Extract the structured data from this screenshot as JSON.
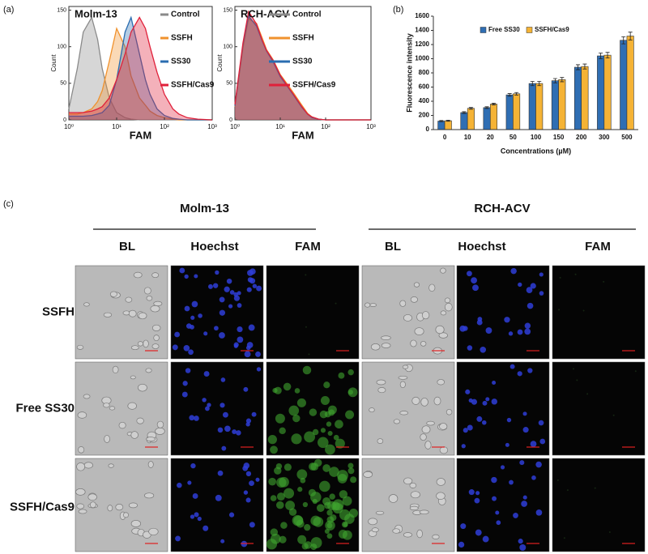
{
  "panel_labels": [
    "(a)",
    "(b)",
    "(c)"
  ],
  "chart_data": [
    {
      "type": "area",
      "title": "Molm-13",
      "y_label": "Count",
      "x_label": "FAM",
      "log_x": true,
      "xlim": [
        1,
        1000
      ],
      "ylim": [
        0,
        155
      ],
      "xticks": [
        {
          "value": 1,
          "label": "10⁰"
        },
        {
          "value": 10,
          "label": "10¹"
        },
        {
          "value": 100,
          "label": "10²"
        },
        {
          "value": 1000,
          "label": "10³"
        }
      ],
      "yticks": [
        0,
        50,
        100,
        150
      ],
      "legend": "upper right",
      "x": [
        1,
        1.5,
        2,
        3,
        4,
        5,
        7,
        10,
        15,
        20,
        30,
        40,
        50,
        70,
        100,
        150,
        200,
        300,
        500,
        1000
      ],
      "series": [
        {
          "name": "Control",
          "color": "#8a8a8a",
          "values": [
            15,
            70,
            120,
            140,
            110,
            70,
            30,
            10,
            3,
            1,
            0,
            0,
            0,
            0,
            0,
            0,
            0,
            0,
            0,
            0
          ]
        },
        {
          "name": "SSFH",
          "color": "#f0922e",
          "values": [
            8,
            8,
            10,
            15,
            25,
            40,
            80,
            125,
            100,
            60,
            30,
            20,
            12,
            6,
            3,
            1,
            0,
            0,
            0,
            0
          ]
        },
        {
          "name": "SS30",
          "color": "#2a6db0",
          "values": [
            5,
            5,
            5,
            6,
            8,
            10,
            20,
            55,
            120,
            140,
            90,
            55,
            35,
            15,
            6,
            2,
            1,
            0,
            0,
            0
          ]
        },
        {
          "name": "SSFH/Cas9",
          "color": "#e0203a",
          "values": [
            10,
            10,
            10,
            12,
            15,
            18,
            30,
            55,
            90,
            120,
            140,
            125,
            100,
            65,
            35,
            15,
            8,
            3,
            1,
            0
          ]
        }
      ]
    },
    {
      "type": "area",
      "title": "RCH-ACV",
      "y_label": "Count",
      "x_label": "FAM",
      "log_x": true,
      "xlim": [
        1,
        1000
      ],
      "ylim": [
        0,
        155
      ],
      "xticks": [
        {
          "value": 1,
          "label": "10⁰"
        },
        {
          "value": 10,
          "label": "10¹"
        },
        {
          "value": 100,
          "label": "10²"
        },
        {
          "value": 1000,
          "label": "10³"
        }
      ],
      "yticks": [
        0,
        50,
        100,
        150
      ],
      "legend": "upper right",
      "x": [
        1,
        1.5,
        2,
        3,
        4,
        5,
        7,
        10,
        15,
        20,
        30,
        40,
        50,
        70,
        100,
        150,
        200,
        300,
        500,
        1000
      ],
      "series": [
        {
          "name": "Control",
          "color": "#8a8a8a",
          "values": [
            20,
            100,
            140,
            130,
            110,
            95,
            80,
            60,
            45,
            35,
            18,
            8,
            4,
            1,
            0,
            0,
            0,
            0,
            0,
            0
          ]
        },
        {
          "name": "SSFH",
          "color": "#f0922e",
          "values": [
            18,
            98,
            138,
            132,
            112,
            96,
            82,
            62,
            47,
            36,
            20,
            9,
            4,
            1,
            0,
            0,
            0,
            0,
            0,
            0
          ]
        },
        {
          "name": "SS30",
          "color": "#2a6db0",
          "values": [
            19,
            102,
            142,
            128,
            108,
            94,
            79,
            59,
            44,
            33,
            17,
            8,
            3,
            1,
            0,
            0,
            0,
            0,
            0,
            0
          ]
        },
        {
          "name": "SSFH/Cas9",
          "color": "#e0203a",
          "values": [
            21,
            105,
            148,
            131,
            109,
            95,
            81,
            61,
            45,
            34,
            18,
            8,
            4,
            1,
            0,
            0,
            0,
            0,
            0,
            0
          ]
        }
      ]
    },
    {
      "type": "bar",
      "y_label": "Fluorescence intensity",
      "x_label": "Concentrations (µM)",
      "categories": [
        "0",
        "10",
        "20",
        "50",
        "100",
        "150",
        "200",
        "300",
        "500"
      ],
      "ylim": [
        0,
        1600
      ],
      "yticks": [
        0,
        200,
        400,
        600,
        800,
        1000,
        1200,
        1400,
        1600
      ],
      "legend": "upper center",
      "series": [
        {
          "name": "Free SS30",
          "color": "#2f6eb3",
          "values": [
            120,
            240,
            310,
            490,
            650,
            690,
            880,
            1040,
            1260
          ],
          "errors": [
            8,
            12,
            12,
            18,
            30,
            30,
            35,
            40,
            50
          ]
        },
        {
          "name": "SSFH/Cas9",
          "color": "#f5b335",
          "values": [
            125,
            300,
            360,
            505,
            650,
            705,
            890,
            1050,
            1320
          ],
          "errors": [
            8,
            12,
            12,
            18,
            30,
            30,
            35,
            40,
            55
          ]
        }
      ]
    }
  ],
  "panel_c": {
    "groups": [
      "Molm-13",
      "RCH-ACV"
    ],
    "columns": [
      "BL",
      "Hoechst",
      "FAM"
    ],
    "rows": [
      "SSFH",
      "Free SS30",
      "SSFH/Cas9"
    ]
  }
}
